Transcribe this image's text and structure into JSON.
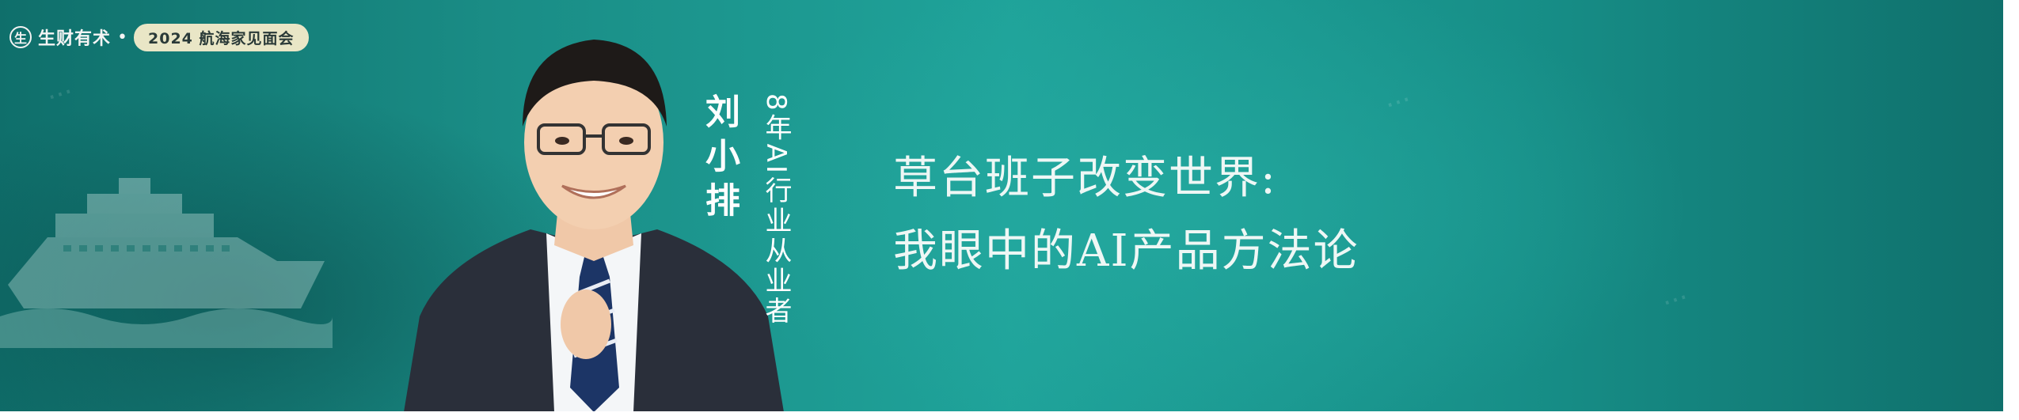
{
  "brand": {
    "logo_glyph": "生",
    "name": "生财有术",
    "separator": "•",
    "event_label": "2024 航海家见面会"
  },
  "speaker": {
    "name": "刘小排",
    "role": "8年AI行业从业者"
  },
  "headline": {
    "line1": "草台班子改变世界:",
    "line2": "我眼中的AI产品方法论"
  },
  "colors": {
    "background_primary": "#1a8d86",
    "background_dark": "#0f6f6b",
    "badge_bg": "#e9e6c6",
    "text": "#ffffff"
  }
}
